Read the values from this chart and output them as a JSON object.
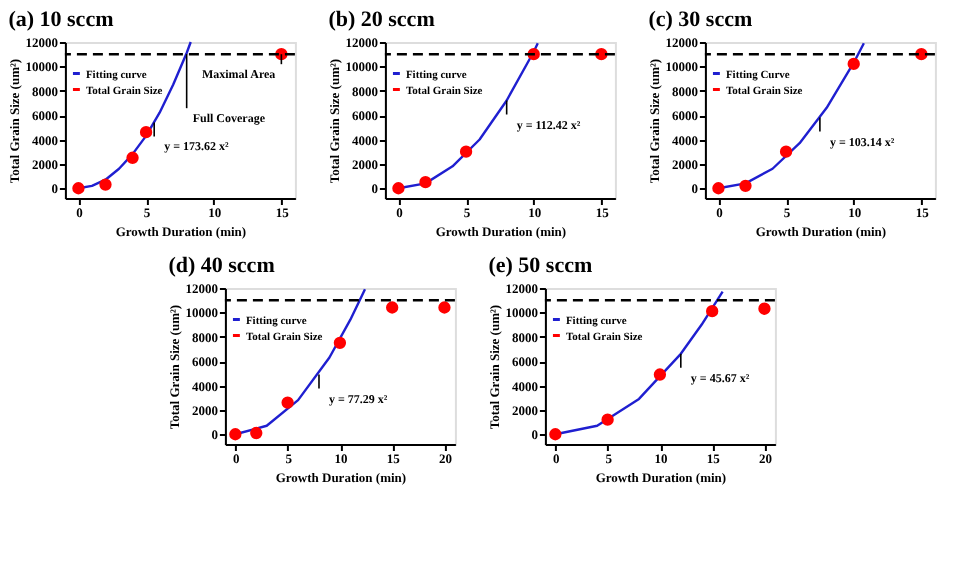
{
  "chart_data": [
    {
      "type": "line",
      "title": "(a) 10 sccm",
      "xlabel": "Growth Duration (min)",
      "ylabel": "Total Grain Size (um²)",
      "xlim": [
        -1,
        16
      ],
      "xticks": [
        0,
        5,
        10,
        15
      ],
      "ylim": [
        -800,
        12000
      ],
      "yticks": [
        0,
        2000,
        4000,
        6000,
        8000,
        10000,
        12000
      ],
      "grid": false,
      "legend": "top left",
      "series": [
        {
          "name": "Fitting curve",
          "color": "#1f1fd0",
          "x": [
            0,
            1,
            2,
            3,
            4,
            5,
            6,
            7,
            8,
            8.3
          ],
          "values": [
            0,
            200,
            700,
            1600,
            2800,
            4300,
            6200,
            8500,
            11100,
            12000
          ]
        },
        {
          "name": "Total Grain Size",
          "type": "scatter",
          "marker": "circle",
          "color": "#ff0000",
          "x": [
            0,
            2,
            4,
            5,
            15
          ],
          "values": [
            0,
            300,
            2500,
            4600,
            11000
          ]
        }
      ],
      "ref_lines": [
        {
          "axis": "y",
          "value": 11000,
          "color": "#000000",
          "line_style": "dashed"
        }
      ],
      "annotations": [
        {
          "text": "y = 173.62 x²",
          "x": 5.6,
          "y": 5400
        },
        {
          "text": "Full Coverage",
          "x": 8,
          "y": 11000
        },
        {
          "text": "Maximal Area",
          "x": 15,
          "y": 11000
        }
      ]
    },
    {
      "type": "line",
      "title": "(b) 20 sccm",
      "xlabel": "Growth Duration (min)",
      "ylabel": "Total Grain Size (um²)",
      "xlim": [
        -1,
        16
      ],
      "xticks": [
        0,
        5,
        10,
        15
      ],
      "ylim": [
        -800,
        12000
      ],
      "yticks": [
        0,
        2000,
        4000,
        6000,
        8000,
        10000,
        12000
      ],
      "grid": false,
      "legend": "top left",
      "series": [
        {
          "name": "Fitting curve",
          "color": "#1f1fd0",
          "x": [
            0,
            2,
            4,
            6,
            8,
            10,
            10.3
          ],
          "values": [
            0,
            400,
            1800,
            4000,
            7200,
            11200,
            11900
          ]
        },
        {
          "name": "Total Grain Size",
          "type": "scatter",
          "marker": "circle",
          "color": "#ff0000",
          "x": [
            0,
            2,
            5,
            10,
            15
          ],
          "values": [
            0,
            500,
            3000,
            11000,
            11000
          ]
        }
      ],
      "ref_lines": [
        {
          "axis": "y",
          "value": 11000,
          "color": "#000000",
          "line_style": "dashed"
        }
      ],
      "annotations": [
        {
          "text": "y = 112.42 x²",
          "x": 8,
          "y": 7200
        }
      ]
    },
    {
      "type": "line",
      "title": "(c) 30 sccm",
      "xlabel": "Growth Duration (min)",
      "ylabel": "Total Grain Size (um²)",
      "xlim": [
        -1,
        16
      ],
      "xticks": [
        0,
        5,
        10,
        15
      ],
      "ylim": [
        -800,
        12000
      ],
      "yticks": [
        0,
        2000,
        4000,
        6000,
        8000,
        10000,
        12000
      ],
      "grid": false,
      "legend": "top left",
      "series": [
        {
          "name": "Fitting Curve",
          "color": "#1f1fd0",
          "x": [
            0,
            2,
            4,
            6,
            8,
            10,
            10.75
          ],
          "values": [
            0,
            400,
            1600,
            3700,
            6600,
            10300,
            11900
          ]
        },
        {
          "name": "Total Grain Size",
          "type": "scatter",
          "marker": "circle",
          "color": "#ff0000",
          "x": [
            0,
            2,
            5,
            10,
            15
          ],
          "values": [
            0,
            200,
            3000,
            10200,
            11000
          ]
        }
      ],
      "ref_lines": [
        {
          "axis": "y",
          "value": 11000,
          "color": "#000000",
          "line_style": "dashed"
        }
      ],
      "annotations": [
        {
          "text": "y = 103.14 x²",
          "x": 7.5,
          "y": 5800
        }
      ]
    },
    {
      "type": "line",
      "title": "(d) 40 sccm",
      "xlabel": "Growth Duration (min)",
      "ylabel": "Total Grain Size (um²)",
      "xlim": [
        -1,
        21
      ],
      "xticks": [
        0,
        5,
        10,
        15,
        20
      ],
      "ylim": [
        -800,
        12000
      ],
      "yticks": [
        0,
        2000,
        4000,
        6000,
        8000,
        10000,
        12000
      ],
      "grid": false,
      "legend": "top left",
      "series": [
        {
          "name": "Fitting curve",
          "color": "#1f1fd0",
          "x": [
            0,
            3,
            6,
            9,
            11,
            12.4
          ],
          "values": [
            0,
            700,
            2800,
            6300,
            9400,
            11900
          ]
        },
        {
          "name": "Total Grain Size",
          "type": "scatter",
          "marker": "circle",
          "color": "#ff0000",
          "x": [
            0,
            2,
            5,
            10,
            15,
            20
          ],
          "values": [
            0,
            100,
            2600,
            7500,
            10400,
            10400
          ]
        }
      ],
      "ref_lines": [
        {
          "axis": "y",
          "value": 11000,
          "color": "#000000",
          "line_style": "dashed"
        }
      ],
      "annotations": [
        {
          "text": "y = 77.29 x²",
          "x": 8,
          "y": 4900
        }
      ]
    },
    {
      "type": "line",
      "title": "(e) 50 sccm",
      "xlabel": "Growth Duration (min)",
      "ylabel": "Total Grain Size (um²)",
      "xlim": [
        -1,
        21
      ],
      "xticks": [
        0,
        5,
        10,
        15,
        20
      ],
      "ylim": [
        -800,
        12000
      ],
      "yticks": [
        0,
        2000,
        4000,
        6000,
        8000,
        10000,
        12000
      ],
      "grid": false,
      "legend": "top left",
      "series": [
        {
          "name": "Fitting curve",
          "color": "#1f1fd0",
          "x": [
            0,
            4,
            8,
            12,
            14,
            16
          ],
          "values": [
            0,
            700,
            2900,
            6600,
            9000,
            11700
          ]
        },
        {
          "name": "Total Grain Size",
          "type": "scatter",
          "marker": "circle",
          "color": "#ff0000",
          "x": [
            0,
            5,
            10,
            15,
            20
          ],
          "values": [
            0,
            1200,
            4900,
            10100,
            10300
          ]
        }
      ],
      "ref_lines": [
        {
          "axis": "y",
          "value": 11000,
          "color": "#000000",
          "line_style": "dashed"
        }
      ],
      "annotations": [
        {
          "text": "y = 45.67 x²",
          "x": 12,
          "y": 6600
        }
      ]
    }
  ]
}
